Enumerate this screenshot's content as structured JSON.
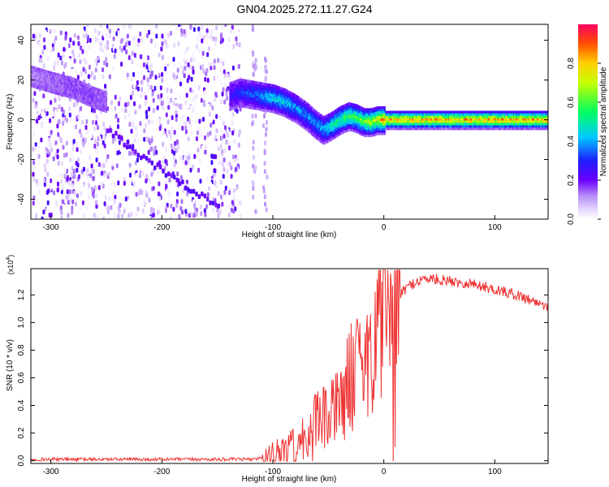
{
  "title": "GN04.2025.272.11.27.G24",
  "chart_data": [
    {
      "type": "heatmap",
      "title": "GN04.2025.272.11.27.G24",
      "xlabel": "Height of straight line (km)",
      "ylabel": "Frequency (Hz)",
      "xlim": [
        -318,
        148
      ],
      "ylim": [
        -50,
        48
      ],
      "xticks": [
        -300,
        -200,
        -100,
        0,
        100
      ],
      "yticks": [
        -40,
        -20,
        0,
        20,
        40
      ],
      "colorbar": {
        "label": "Normalized spectral amplitude",
        "range": [
          0,
          1
        ],
        "ticks": [
          "0.0",
          "0.2",
          "0.4",
          "0.6",
          "0.8"
        ],
        "colormap": "rainbow (white/lavender low, purple, blue, cyan, green, yellow, orange, red high)"
      },
      "noise_region": {
        "x_from": -318,
        "x_to": -130,
        "amplitude": "low (0.0-0.15)"
      },
      "faint_columns_x": [
        -118,
        -108
      ],
      "ridge_track": {
        "x": [
          -318,
          -300,
          -280,
          -265,
          -250,
          -140,
          -130,
          -120,
          -110,
          -100,
          -90,
          -80,
          -70,
          -62,
          -55,
          -48,
          -40,
          -32,
          -25,
          -18,
          -12,
          -6,
          0,
          30,
          60,
          90,
          120,
          148
        ],
        "frequency": [
          22,
          19,
          16,
          12,
          9,
          12,
          14,
          13,
          12,
          11,
          9,
          6,
          2,
          -2,
          -5,
          -3,
          0,
          2,
          1,
          -1,
          -1,
          0,
          0,
          0,
          0,
          0,
          0,
          0
        ],
        "amplitude": [
          0.12,
          0.14,
          0.16,
          0.16,
          0.14,
          0.25,
          0.3,
          0.35,
          0.4,
          0.45,
          0.45,
          0.4,
          0.38,
          0.4,
          0.42,
          0.5,
          0.55,
          0.6,
          0.6,
          0.65,
          0.7,
          0.75,
          0.85,
          0.85,
          0.85,
          0.85,
          0.85,
          0.85
        ]
      },
      "diagonal_streak": {
        "x": [
          -250,
          -210,
          -175,
          -150
        ],
        "frequency": [
          -5,
          -22,
          -35,
          -44
        ]
      }
    },
    {
      "type": "line",
      "xlabel": "Height of straight line (km)",
      "ylabel": "SNR (10 * v/v)",
      "multiplier_label": "(x10",
      "multiplier_exp": "4",
      "xlim": [
        -318,
        148
      ],
      "ylim": [
        -0.02,
        1.39
      ],
      "xticks": [
        -300,
        -200,
        -100,
        0,
        100
      ],
      "yticks": [
        0.0,
        0.2,
        0.4,
        0.6,
        0.8,
        1.0,
        1.2
      ],
      "color": "#ee3333",
      "series": [
        {
          "x": [
            -318,
            -250,
            -200,
            -150,
            -120,
            -110,
            -100,
            -90,
            -80,
            -70,
            -60,
            -50,
            -40,
            -30,
            -20,
            -10,
            0,
            10,
            20,
            30,
            40,
            50,
            60,
            70,
            80,
            90,
            100,
            110,
            120,
            130,
            140,
            148
          ],
          "values": [
            0.01,
            0.01,
            0.01,
            0.01,
            0.01,
            0.02,
            0.04,
            0.08,
            0.12,
            0.2,
            0.28,
            0.3,
            0.4,
            0.6,
            0.75,
            0.9,
            1.05,
            1.15,
            1.25,
            1.3,
            1.32,
            1.31,
            1.3,
            1.29,
            1.28,
            1.26,
            1.24,
            1.22,
            1.2,
            1.17,
            1.14,
            1.12
          ]
        }
      ]
    }
  ]
}
